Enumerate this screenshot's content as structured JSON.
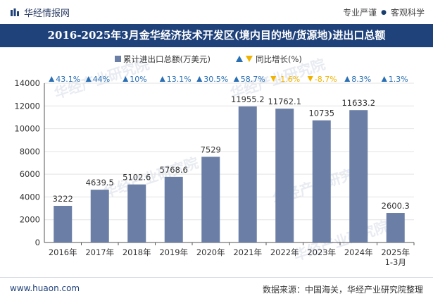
{
  "header": {
    "brand": "华经情报网",
    "tag_left": "专业严谨",
    "tag_right": "客观科学"
  },
  "title": "2016-2025年3月金华经济技术开发区(境内目的地/货源地)进出口总额",
  "footer": {
    "url": "www.huaon.com",
    "source": "数据来源：中国海关，华经产业研究院整理"
  },
  "watermark": "华经产业研究院",
  "colors": {
    "bar": "#6b7fa6",
    "up": "#2a6fb3",
    "down": "#f0b400",
    "title_bg": "#20427a",
    "grid": "#e3e3e3"
  },
  "chart_data": {
    "type": "bar",
    "categories": [
      "2016年",
      "2017年",
      "2018年",
      "2019年",
      "2020年",
      "2021年",
      "2022年",
      "2023年",
      "2024年",
      "2025年\n1-3月"
    ],
    "series": [
      {
        "name": "累计进出口总额(万美元)",
        "values": [
          3222,
          4639.5,
          5102.6,
          5768.6,
          7529,
          11955.2,
          11762.1,
          10735,
          11633.2,
          2600.3
        ]
      }
    ],
    "growth": {
      "name": "同比增长(%)",
      "values": [
        "43.1%",
        "44%",
        "10%",
        "13.1%",
        "30.5%",
        "58.7%",
        "-1.6%",
        "-8.7%",
        "8.3%",
        "1.3%"
      ],
      "direction": [
        "up",
        "up",
        "up",
        "up",
        "up",
        "up",
        "down",
        "down",
        "up",
        "up"
      ]
    },
    "ylim": [
      0,
      14000
    ],
    "yticks": [
      0,
      2000,
      4000,
      6000,
      8000,
      10000,
      12000,
      14000
    ],
    "grid": true,
    "legend": "top-center"
  }
}
